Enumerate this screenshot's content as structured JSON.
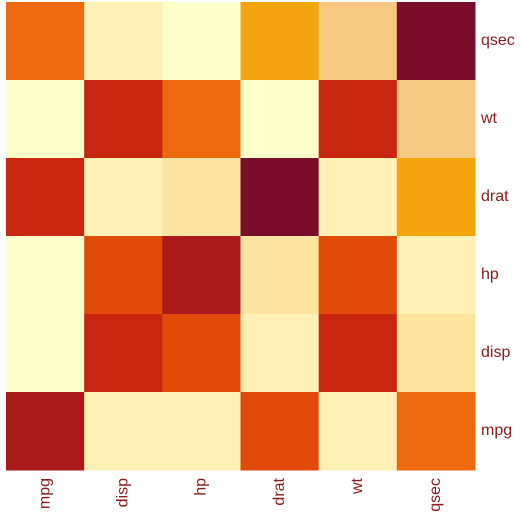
{
  "chart_data": {
    "type": "heatmap",
    "title": "",
    "xlabel": "",
    "ylabel": "",
    "x_categories": [
      "mpg",
      "disp",
      "hp",
      "drat",
      "wt",
      "qsec"
    ],
    "y_categories": [
      "qsec",
      "wt",
      "drat",
      "hp",
      "disp",
      "mpg"
    ],
    "label_color": "#8b1a1a",
    "palette": [
      "#ffffcc",
      "#fff1b6",
      "#ffe3a0",
      "#f6c882",
      "#f4a40d",
      "#ee6a10",
      "#e14b0a",
      "#c8260f",
      "#ab1a1a",
      "#7a0d2a"
    ],
    "values": [
      [
        5,
        1,
        0,
        4,
        3,
        9
      ],
      [
        0,
        7,
        5,
        0,
        7,
        3
      ],
      [
        7,
        1,
        2,
        9,
        1,
        4
      ],
      [
        0,
        6,
        8,
        2,
        6,
        1
      ],
      [
        0,
        7,
        6,
        1,
        7,
        2
      ],
      [
        8,
        1,
        1,
        6,
        1,
        5
      ]
    ]
  }
}
